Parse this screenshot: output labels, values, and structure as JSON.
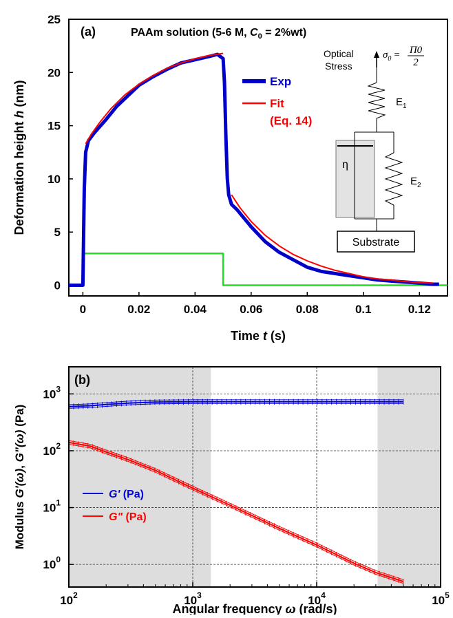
{
  "chart_data": [
    {
      "type": "line",
      "panel_label": "(a)",
      "title": "PAAm solution (5-6 M, C0 = 2%wt)",
      "title_parts": {
        "prefix": "PAAm solution (5-6 M, ",
        "c": "C",
        "sub": "0",
        "suffix": " = 2%wt)"
      },
      "xlabel": {
        "text": "Time ",
        "var": "t",
        "unit": " (s)"
      },
      "ylabel": {
        "text": "Deformation height ",
        "var": "h",
        "unit": " (nm)"
      },
      "xlim": [
        -0.005,
        0.13
      ],
      "ylim": [
        -1,
        25
      ],
      "xticks": [
        0,
        0.02,
        0.04,
        0.06,
        0.08,
        0.1,
        0.12
      ],
      "xtick_labels": [
        "0",
        "0.02",
        "0.04",
        "0.06",
        "0.08",
        "0.1",
        "0.12"
      ],
      "yticks": [
        0,
        5,
        10,
        15,
        20,
        25
      ],
      "ytick_labels": [
        "0",
        "5",
        "10",
        "15",
        "20",
        "25"
      ],
      "legend": [
        {
          "name": "Exp",
          "color": "#0000c8"
        },
        {
          "name": "Fit",
          "color": "#ff0000"
        },
        {
          "name": "(Eq. 14)",
          "color": "#ff0000"
        }
      ],
      "series": [
        {
          "name": "Exp",
          "color": "#0000c8",
          "x": [
            -0.005,
            0.0,
            0.0005,
            0.001,
            0.002,
            0.004,
            0.008,
            0.012,
            0.016,
            0.02,
            0.025,
            0.03,
            0.035,
            0.04,
            0.045,
            0.048,
            0.05,
            0.0505,
            0.051,
            0.0515,
            0.052,
            0.053,
            0.055,
            0.06,
            0.065,
            0.07,
            0.075,
            0.08,
            0.085,
            0.09,
            0.095,
            0.1,
            0.105,
            0.11,
            0.115,
            0.12,
            0.125,
            0.127
          ],
          "y": [
            0,
            0,
            9,
            12.5,
            13.6,
            14.3,
            15.5,
            16.8,
            17.8,
            18.8,
            19.6,
            20.3,
            20.9,
            21.2,
            21.5,
            21.7,
            21.3,
            19,
            14,
            10,
            8.5,
            7.6,
            7.1,
            5.5,
            4.1,
            3.1,
            2.4,
            1.7,
            1.3,
            1.1,
            0.9,
            0.7,
            0.5,
            0.4,
            0.3,
            0.2,
            0.1,
            0.1
          ]
        },
        {
          "name": "Fit",
          "color": "#ff0000",
          "x": [
            0.001,
            0.003,
            0.006,
            0.01,
            0.015,
            0.02,
            0.025,
            0.03,
            0.035,
            0.04,
            0.045,
            0.05,
            0.053,
            0.056,
            0.06,
            0.065,
            0.07,
            0.075,
            0.08,
            0.085,
            0.09,
            0.095,
            0.1,
            0.105,
            0.11,
            0.115,
            0.12,
            0.125
          ],
          "y": [
            13.3,
            14.2,
            15.3,
            16.6,
            17.9,
            18.9,
            19.7,
            20.4,
            20.9,
            21.3,
            21.6,
            21.8,
            8.5,
            7.3,
            6.0,
            4.7,
            3.7,
            2.9,
            2.3,
            1.8,
            1.4,
            1.1,
            0.8,
            0.6,
            0.5,
            0.35,
            0.25,
            0.2
          ]
        },
        {
          "name": "stress-pulse",
          "color": "#22dd22",
          "x": [
            -0.005,
            0.0,
            0.0,
            0.05,
            0.05,
            0.13
          ],
          "y": [
            0,
            0,
            3,
            3,
            0,
            0
          ]
        }
      ],
      "inset": {
        "optical": "Optical",
        "stress": "Stress",
        "equation": "σ0 = Π0 / 2",
        "eq_sigma": "σ",
        "eq_sub": "0",
        "eq_equals": "=",
        "eq_num": "Π0",
        "eq_den": "2",
        "e1": "E1",
        "e1_main": "E",
        "e1_sub": "1",
        "e2": "E2",
        "e2_main": "E",
        "e2_sub": "2",
        "eta": "η",
        "substrate": "Substrate"
      }
    },
    {
      "type": "line",
      "panel_label": "(b)",
      "xlabel": {
        "text": "Angular frequency ",
        "var": "ω",
        "unit": " (rad/s)"
      },
      "ylabel": {
        "text": "Modulus ",
        "var1": "G'(ω)",
        "sep": ", ",
        "var2": "G\"(ω)",
        "unit": " (Pa)"
      },
      "xscale": "log",
      "yscale": "log",
      "xlim": [
        100,
        100000
      ],
      "ylim": [
        0.4,
        3000
      ],
      "xticks": [
        100,
        1000,
        10000,
        100000
      ],
      "xtick_labels": [
        {
          "base": "10",
          "exp": "2"
        },
        {
          "base": "10",
          "exp": "3"
        },
        {
          "base": "10",
          "exp": "4"
        },
        {
          "base": "10",
          "exp": "5"
        }
      ],
      "yticks": [
        1,
        10,
        100,
        1000
      ],
      "ytick_labels": [
        {
          "base": "10",
          "exp": "0"
        },
        {
          "base": "10",
          "exp": "1"
        },
        {
          "base": "10",
          "exp": "2"
        },
        {
          "base": "10",
          "exp": "3"
        }
      ],
      "grid": true,
      "shaded_regions_x": [
        [
          100,
          1400
        ],
        [
          31000,
          100000
        ]
      ],
      "shade_color": "#dddddd",
      "legend": [
        {
          "name": "G' (Pa)",
          "color": "#0000dd",
          "var": "G'",
          "unit": " (Pa)"
        },
        {
          "name": "G\" (Pa)",
          "color": "#ff0000",
          "var": "G\"",
          "unit": " (Pa)"
        }
      ],
      "series": [
        {
          "name": "G' (Pa)",
          "color": "#0000dd",
          "x": [
            100,
            150,
            200,
            300,
            500,
            1000,
            3000,
            10000,
            30000,
            50000
          ],
          "y": [
            600,
            620,
            650,
            690,
            720,
            730,
            730,
            730,
            730,
            730
          ]
        },
        {
          "name": "G\" (Pa)",
          "color": "#ff0000",
          "x": [
            100,
            150,
            200,
            300,
            500,
            1000,
            2000,
            5000,
            10000,
            20000,
            30000,
            50000
          ],
          "y": [
            140,
            120,
            95,
            70,
            45,
            22,
            11,
            4.3,
            2.2,
            1.05,
            0.72,
            0.5
          ]
        }
      ]
    }
  ]
}
